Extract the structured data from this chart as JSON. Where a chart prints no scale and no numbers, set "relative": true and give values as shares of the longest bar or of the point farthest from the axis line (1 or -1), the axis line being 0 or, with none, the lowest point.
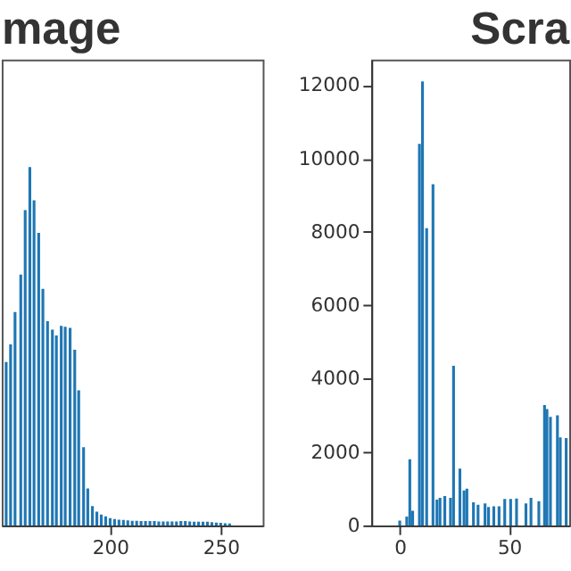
{
  "chart_data": [
    {
      "type": "bar",
      "title": "mage",
      "relative": true,
      "xlim": [
        151,
        269
      ],
      "xticks": [
        200,
        250
      ],
      "grid": false,
      "tick_labels": "x",
      "x": [
        153,
        155,
        157,
        159.6,
        161.6,
        163.7,
        165.6,
        167.7,
        169.6,
        171.7,
        173.9,
        175.7,
        177.9,
        179.7,
        181.9,
        184,
        185.8,
        188,
        189.9,
        192,
        194,
        196,
        198,
        200,
        202,
        204,
        206,
        208,
        210,
        212,
        214,
        216,
        218,
        220,
        222,
        224,
        226,
        228,
        230,
        232,
        234,
        236,
        238,
        240,
        242,
        244,
        246,
        248,
        250,
        252,
        254
      ],
      "series": [
        {
          "color": "#1f77b4",
          "values": [
            0.456,
            0.505,
            0.595,
            0.7,
            0.88,
            1.0,
            0.907,
            0.816,
            0.66,
            0.57,
            0.546,
            0.53,
            0.557,
            0.554,
            0.551,
            0.49,
            0.377,
            0.218,
            0.103,
            0.054,
            0.038,
            0.03,
            0.025,
            0.02,
            0.018,
            0.016,
            0.015,
            0.014,
            0.013,
            0.013,
            0.012,
            0.012,
            0.012,
            0.012,
            0.011,
            0.011,
            0.011,
            0.011,
            0.011,
            0.012,
            0.012,
            0.011,
            0.01,
            0.01,
            0.01,
            0.01,
            0.009,
            0.008,
            0.007,
            0.006,
            0.005
          ]
        }
      ]
    },
    {
      "type": "bar",
      "title": "Scra",
      "xlim": [
        -13,
        77.5
      ],
      "xticks": [
        0,
        50
      ],
      "ylim": [
        0,
        12700
      ],
      "yticks": [
        0,
        2000,
        4000,
        6000,
        8000,
        10000,
        12000
      ],
      "grid": false,
      "x": [
        0,
        3.2,
        4.6,
        5.9,
        9.0,
        10.4,
        12.3,
        15.2,
        17,
        18.4,
        20.6,
        23.2,
        24.6,
        27.5,
        29.4,
        30.7,
        33.7,
        35.8,
        39,
        40.6,
        43,
        45.4,
        48,
        50.7,
        53.4,
        57.7,
        60,
        63.6,
        66.2,
        67.3,
        68.9,
        72.1,
        73.4,
        76.1
      ],
      "series": [
        {
          "color": "#1f77b4",
          "values": [
            130,
            240,
            1800,
            400,
            10400,
            12100,
            8100,
            9300,
            700,
            750,
            800,
            750,
            4350,
            1550,
            950,
            1000,
            630,
            560,
            600,
            500,
            520,
            520,
            720,
            720,
            730,
            600,
            750,
            660,
            3280,
            3170,
            2960,
            3000,
            2400,
            2380
          ]
        }
      ]
    }
  ]
}
